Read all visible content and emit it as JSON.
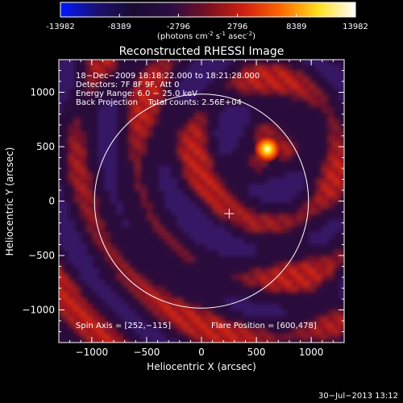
{
  "colorbar": {
    "ticks": [
      "-13982",
      "-8389",
      "-2796",
      "2796",
      "8389",
      "13982"
    ],
    "tick_values": [
      -13982,
      -8389,
      -2796,
      2796,
      8389,
      13982
    ],
    "label_main": "(photons cm",
    "label_sup1": "-2",
    "label_mid1": " s",
    "label_sup2": "-1",
    "label_mid2": " asec",
    "label_sup3": "-2",
    "label_end": ")",
    "stops": [
      "#0018ff",
      "#1a1070",
      "#1a0b30",
      "#2a0d45",
      "#7a1020",
      "#d02010",
      "#ff6a00",
      "#ffe020",
      "#ffffff"
    ]
  },
  "chart_data": {
    "type": "heatmap",
    "title": "Reconstructed RHESSI Image",
    "xlabel": "Heliocentric X (arcsec)",
    "ylabel": "Heliocentric Y (arcsec)",
    "xlim": [
      -1300,
      1300
    ],
    "ylim": [
      -1300,
      1300
    ],
    "x_ticks": [
      -1000,
      -500,
      0,
      500,
      1000
    ],
    "y_ticks": [
      -1000,
      -500,
      0,
      500,
      1000
    ],
    "x_tick_labels": [
      "−1000",
      "−500",
      "0",
      "500",
      "1000"
    ],
    "y_tick_labels": [
      "−1000",
      "−500",
      "0",
      "500",
      "1000"
    ],
    "solar_disk_radius": 975,
    "flare_center": [
      600,
      478
    ],
    "cross_center": [
      252,
      -115
    ],
    "annotations": [
      "18−Dec−2009 18:18:22.000 to 18:21:28.000",
      "Detectors: 7F 8F 9F, Att 0",
      "Energy Range: 6.0 − 25.0 keV",
      "Back Projection    Total counts: 2.56E+04"
    ],
    "spin_axis": "Spin Axis = [252,−115]",
    "flare_position": "Flare Position = [600,478]"
  },
  "footer": {
    "timestamp": "30−Jul−2013 13:12"
  }
}
